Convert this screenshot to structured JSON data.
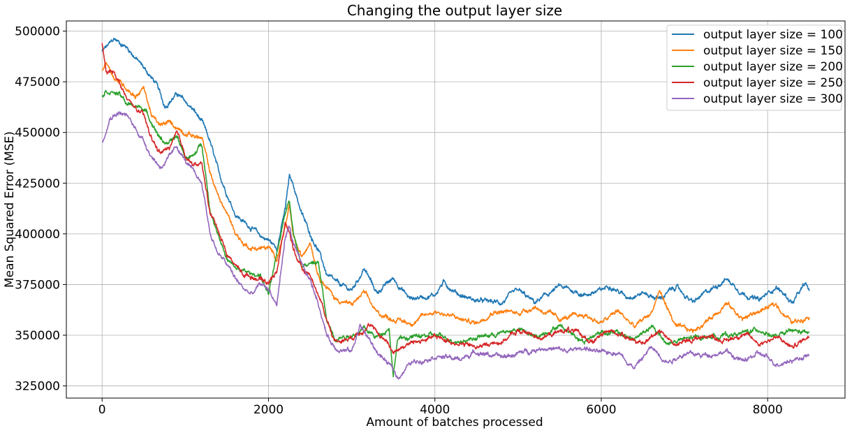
{
  "chart_data": {
    "type": "line",
    "title": "Changing the output layer size",
    "xlabel": "Amount of batches processed",
    "ylabel": "Mean Squared Error (MSE)",
    "xlim": [
      -430,
      8930
    ],
    "ylim": [
      319000,
      505000
    ],
    "xticks": [
      0,
      2000,
      4000,
      6000,
      8000
    ],
    "xtick_labels": [
      "0",
      "2000",
      "4000",
      "6000",
      "8000"
    ],
    "yticks": [
      325000,
      350000,
      375000,
      400000,
      425000,
      450000,
      475000,
      500000
    ],
    "ytick_labels": [
      "325000",
      "350000",
      "375000",
      "400000",
      "425000",
      "450000",
      "475000",
      "500000"
    ],
    "grid": true,
    "legend_position": "top-right",
    "series": [
      {
        "name": "output layer size = 100",
        "color": "#1f77b4",
        "x": [
          0,
          100,
          150,
          300,
          500,
          650,
          750,
          900,
          1100,
          1200,
          1300,
          1400,
          1500,
          1600,
          1700,
          1800,
          1900,
          2000,
          2100,
          2200,
          2250,
          2300,
          2400,
          2500,
          2600,
          2700,
          2800,
          3000,
          3150,
          3300,
          3500,
          3700,
          4000,
          4100,
          4300,
          4500,
          4800,
          5000,
          5200,
          5500,
          5800,
          6000,
          6100,
          6300,
          6500,
          6700,
          6900,
          7100,
          7300,
          7500,
          7700,
          7900,
          8100,
          8300,
          8450,
          8500
        ],
        "values": [
          490000,
          494000,
          496000,
          492000,
          482000,
          474000,
          463000,
          469000,
          461000,
          455000,
          445000,
          430000,
          420000,
          410000,
          406000,
          403000,
          399000,
          397000,
          393000,
          412000,
          428000,
          424000,
          410000,
          400000,
          392000,
          380000,
          376000,
          372000,
          383000,
          371000,
          378000,
          368000,
          370000,
          376000,
          370000,
          367000,
          366000,
          372000,
          366000,
          374000,
          370000,
          372000,
          375000,
          369000,
          371000,
          368000,
          374000,
          366000,
          372000,
          378000,
          371000,
          367000,
          374000,
          366000,
          375000,
          372000
        ]
      },
      {
        "name": "output layer size = 150",
        "color": "#ff7f0e",
        "x": [
          0,
          50,
          150,
          300,
          400,
          500,
          600,
          700,
          800,
          1000,
          1200,
          1300,
          1400,
          1500,
          1600,
          1700,
          1800,
          2000,
          2100,
          2200,
          2250,
          2300,
          2400,
          2500,
          2600,
          2700,
          2800,
          3000,
          3150,
          3300,
          3500,
          3700,
          4000,
          4300,
          4500,
          4700,
          5000,
          5200,
          5500,
          5800,
          6000,
          6200,
          6400,
          6600,
          6700,
          6900,
          7100,
          7300,
          7500,
          7700,
          7900,
          8100,
          8300,
          8500
        ],
        "values": [
          480000,
          485000,
          477000,
          472000,
          468000,
          472000,
          458000,
          453000,
          455000,
          450000,
          447000,
          430000,
          418000,
          410000,
          401000,
          395000,
          393000,
          393000,
          388000,
          403000,
          413000,
          398000,
          388000,
          397000,
          380000,
          374000,
          368000,
          365000,
          371000,
          361000,
          358000,
          356000,
          362000,
          358000,
          356000,
          362000,
          361000,
          364000,
          358000,
          360000,
          356000,
          362000,
          354000,
          361000,
          372000,
          354000,
          352000,
          358000,
          366000,
          358000,
          362000,
          365000,
          356000,
          360000
        ]
      },
      {
        "name": "output layer size = 200",
        "color": "#2ca02c",
        "x": [
          0,
          50,
          200,
          300,
          500,
          600,
          700,
          800,
          900,
          1000,
          1100,
          1200,
          1300,
          1400,
          1500,
          1600,
          1800,
          1900,
          2000,
          2100,
          2200,
          2250,
          2300,
          2400,
          2500,
          2600,
          2700,
          2800,
          3000,
          3150,
          3300,
          3450,
          3500,
          3550,
          3700,
          4000,
          4300,
          4500,
          4800,
          5000,
          5200,
          5500,
          5800,
          6000,
          6200,
          6400,
          6600,
          6800,
          7000,
          7200,
          7500,
          7700,
          7900,
          8100,
          8300,
          8500
        ],
        "values": [
          468000,
          471000,
          469000,
          464000,
          462000,
          455000,
          447000,
          444000,
          448000,
          438000,
          438000,
          445000,
          411000,
          400000,
          387000,
          383000,
          380000,
          380000,
          370000,
          389000,
          411000,
          418000,
          400000,
          385000,
          385000,
          386000,
          357000,
          349000,
          350000,
          353000,
          349000,
          354000,
          330000,
          348000,
          349000,
          350000,
          347000,
          349000,
          351000,
          353000,
          349000,
          355000,
          347000,
          352000,
          351000,
          348000,
          354000,
          346000,
          348000,
          349000,
          350000,
          351000,
          353000,
          349000,
          352000,
          351000
        ]
      },
      {
        "name": "output layer size = 250",
        "color": "#d62728",
        "x": [
          0,
          50,
          150,
          300,
          500,
          600,
          700,
          800,
          900,
          1000,
          1100,
          1200,
          1300,
          1400,
          1500,
          1600,
          1700,
          1900,
          2000,
          2100,
          2200,
          2250,
          2300,
          2400,
          2500,
          2600,
          2700,
          2800,
          3000,
          3200,
          3400,
          3500,
          3700,
          4000,
          4200,
          4500,
          4800,
          5000,
          5300,
          5600,
          5900,
          6100,
          6300,
          6500,
          6700,
          6900,
          7100,
          7300,
          7500,
          7700,
          7900,
          8100,
          8300,
          8500
        ],
        "values": [
          494000,
          479000,
          480000,
          466000,
          458000,
          446000,
          440000,
          442000,
          449000,
          439000,
          434000,
          434000,
          410000,
          402000,
          390000,
          385000,
          380000,
          378000,
          376000,
          382000,
          405000,
          401000,
          393000,
          382000,
          380000,
          370000,
          358000,
          347000,
          349000,
          355000,
          348000,
          342000,
          346000,
          349000,
          347000,
          344000,
          347000,
          352000,
          349000,
          353000,
          347000,
          352000,
          350000,
          345000,
          353000,
          345000,
          348000,
          350000,
          347000,
          351000,
          346000,
          349000,
          344000,
          350000
        ]
      },
      {
        "name": "output layer size = 300",
        "color": "#9467bd",
        "x": [
          0,
          50,
          100,
          200,
          300,
          500,
          600,
          700,
          800,
          900,
          1000,
          1100,
          1200,
          1300,
          1400,
          1500,
          1600,
          1700,
          1800,
          1900,
          2000,
          2100,
          2200,
          2250,
          2300,
          2400,
          2500,
          2600,
          2700,
          2800,
          3000,
          3100,
          3300,
          3500,
          3550,
          3700,
          4000,
          4300,
          4500,
          4800,
          5000,
          5300,
          5600,
          5800,
          6000,
          6200,
          6400,
          6600,
          6800,
          7000,
          7200,
          7500,
          7700,
          7900,
          8100,
          8300,
          8500
        ],
        "values": [
          445000,
          452000,
          458000,
          460000,
          458000,
          446000,
          438000,
          433000,
          437000,
          443000,
          436000,
          430000,
          425000,
          400000,
          390000,
          385000,
          378000,
          373000,
          370000,
          375000,
          373000,
          365000,
          398000,
          404000,
          395000,
          384000,
          377000,
          366000,
          350000,
          344000,
          342000,
          355000,
          342000,
          333000,
          329000,
          336000,
          340000,
          338000,
          342000,
          339000,
          341000,
          344000,
          342000,
          344000,
          341000,
          342000,
          334000,
          344000,
          337000,
          341000,
          340000,
          342000,
          337000,
          341000,
          336000,
          338000,
          340000
        ]
      }
    ]
  }
}
